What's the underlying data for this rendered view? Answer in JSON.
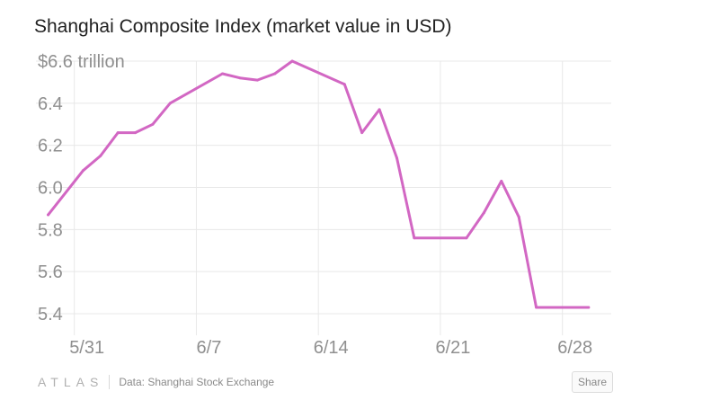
{
  "title": "Shanghai Composite Index (market value in USD)",
  "footer": {
    "brand": "ATLAS",
    "source": "Data: Shanghai Stock Exchange",
    "share_label": "Share"
  },
  "colors": {
    "line": "#d267c3",
    "grid": "#e8e8e8",
    "tick": "#8f8f8f"
  },
  "chart_data": {
    "type": "line",
    "title": "Shanghai Composite Index (market value in USD)",
    "xlabel": "",
    "ylabel": "$ trillion",
    "ylim": [
      5.4,
      6.6
    ],
    "yticks": [
      5.4,
      5.6,
      5.8,
      6.0,
      6.2,
      6.4,
      6.6
    ],
    "ytick_labels": [
      "5.4",
      "5.6",
      "5.8",
      "6.0",
      "6.2",
      "6.4",
      "$6.6 trillion"
    ],
    "xlim": [
      -2.2,
      30.8
    ],
    "xticks": [
      0,
      7,
      14,
      21,
      28
    ],
    "xtick_labels": [
      "5/31",
      "6/7",
      "6/14",
      "6/21",
      "6/28"
    ],
    "grid": true,
    "series": [
      {
        "name": "Market value",
        "x": [
          -1.5,
          0.5,
          1.5,
          2.5,
          3.5,
          4.5,
          5.5,
          8.5,
          9.5,
          10.5,
          11.5,
          12.5,
          15.5,
          16.5,
          17.5,
          18.5,
          19.5,
          22.5,
          23.5,
          24.5,
          25.5,
          26.5,
          29.5
        ],
        "values": [
          5.87,
          6.08,
          6.15,
          6.26,
          6.26,
          6.3,
          6.4,
          6.54,
          6.52,
          6.51,
          6.54,
          6.6,
          6.49,
          6.26,
          6.37,
          6.14,
          5.76,
          5.76,
          5.88,
          6.03,
          5.86,
          5.43,
          5.43
        ]
      }
    ]
  }
}
